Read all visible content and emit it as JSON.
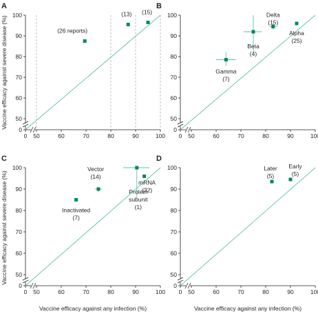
{
  "colors": {
    "accent": "#00885a",
    "diagonal": "#5cc1a6",
    "axis": "#231f20",
    "guide": "#9a9a9a"
  },
  "shared": {
    "xlabel": "Vaccine efficacy against any infection (%)",
    "ylabel": "Vaccine efficacy against severe disease (%)",
    "x_ticks": [
      "0",
      "50",
      "60",
      "70",
      "80",
      "90",
      "100"
    ],
    "y_ticks": [
      "0",
      "50",
      "60",
      "70",
      "80",
      "90",
      "100"
    ]
  },
  "chart_data": [
    {
      "panel": "A",
      "type": "scatter",
      "title": "A",
      "xlim": [
        50,
        100
      ],
      "ylim": [
        50,
        100
      ],
      "axis_break": true,
      "identity_line": true,
      "reference_lines_x": [
        50,
        80,
        90,
        100
      ],
      "points": [
        {
          "label": "(26 reports)",
          "x": 69.5,
          "y": 87.5
        },
        {
          "label": "(13)",
          "x": 87,
          "y": 95.5
        },
        {
          "label": "(15)",
          "x": 95,
          "y": 96.5
        }
      ]
    },
    {
      "panel": "B",
      "type": "scatter",
      "title": "B",
      "xlim": [
        50,
        100
      ],
      "ylim": [
        50,
        100
      ],
      "axis_break": true,
      "identity_line": true,
      "points": [
        {
          "label": "Gamma (7)",
          "label_lines": [
            "Gamma",
            "(7)"
          ],
          "x": 64,
          "y": 78.5,
          "x_err": [
            60,
            68
          ],
          "y_err": [
            75.5,
            82
          ]
        },
        {
          "label": "Beta (4)",
          "label_lines": [
            "Beta",
            "(4)"
          ],
          "x": 75,
          "y": 92,
          "x_err": [
            71,
            78.5
          ],
          "y_err": [
            82,
            100
          ]
        },
        {
          "label": "Delta (15)",
          "label_lines": [
            "Delta",
            "(15)"
          ],
          "x": 83,
          "y": 94.5,
          "x_err": [
            81.5,
            84.5
          ],
          "y_err": [
            93,
            96
          ]
        },
        {
          "label": "Alpha (25)",
          "label_lines": [
            "Alpha",
            "(25)"
          ],
          "x": 92.5,
          "y": 96,
          "x_err": [
            92,
            93
          ],
          "y_err": [
            95.5,
            96.5
          ]
        }
      ]
    },
    {
      "panel": "C",
      "type": "scatter",
      "title": "C",
      "xlim": [
        50,
        100
      ],
      "ylim": [
        50,
        100
      ],
      "axis_break": true,
      "identity_line": true,
      "points": [
        {
          "label": "Inactivated (7)",
          "label_lines": [
            "Inactivated",
            "(7)"
          ],
          "x": 66,
          "y": 85,
          "x_err": [
            65.5,
            66.5
          ],
          "y_err": [
            84.5,
            85.5
          ]
        },
        {
          "label": "Vector (14)",
          "label_lines": [
            "Vector",
            "(14)"
          ],
          "x": 75,
          "y": 90,
          "x_err": [
            73.5,
            76.5
          ],
          "y_err": [
            88.5,
            91
          ]
        },
        {
          "label": "Protein subunit (1)",
          "label_lines": [
            "Protein",
            "subunit",
            "(1)"
          ],
          "x": 90.5,
          "y": 100,
          "x_err": [
            85,
            95.5
          ],
          "y_err": [
            85.5,
            100
          ]
        },
        {
          "label": "mRNA (32)",
          "label_lines": [
            "mRNA",
            "(32)"
          ],
          "x": 93.5,
          "y": 96,
          "x_err": [
            93,
            94
          ],
          "y_err": [
            95.5,
            96.5
          ]
        }
      ]
    },
    {
      "panel": "D",
      "type": "scatter",
      "title": "D",
      "xlim": [
        50,
        100
      ],
      "ylim": [
        50,
        100
      ],
      "axis_break": true,
      "identity_line": true,
      "points": [
        {
          "label": "Later (5)",
          "label_lines": [
            "Later",
            "(5)"
          ],
          "x": 82.5,
          "y": 93.5
        },
        {
          "label": "Early (5)",
          "label_lines": [
            "Early",
            "(5)"
          ],
          "x": 90,
          "y": 94.5
        }
      ]
    }
  ]
}
